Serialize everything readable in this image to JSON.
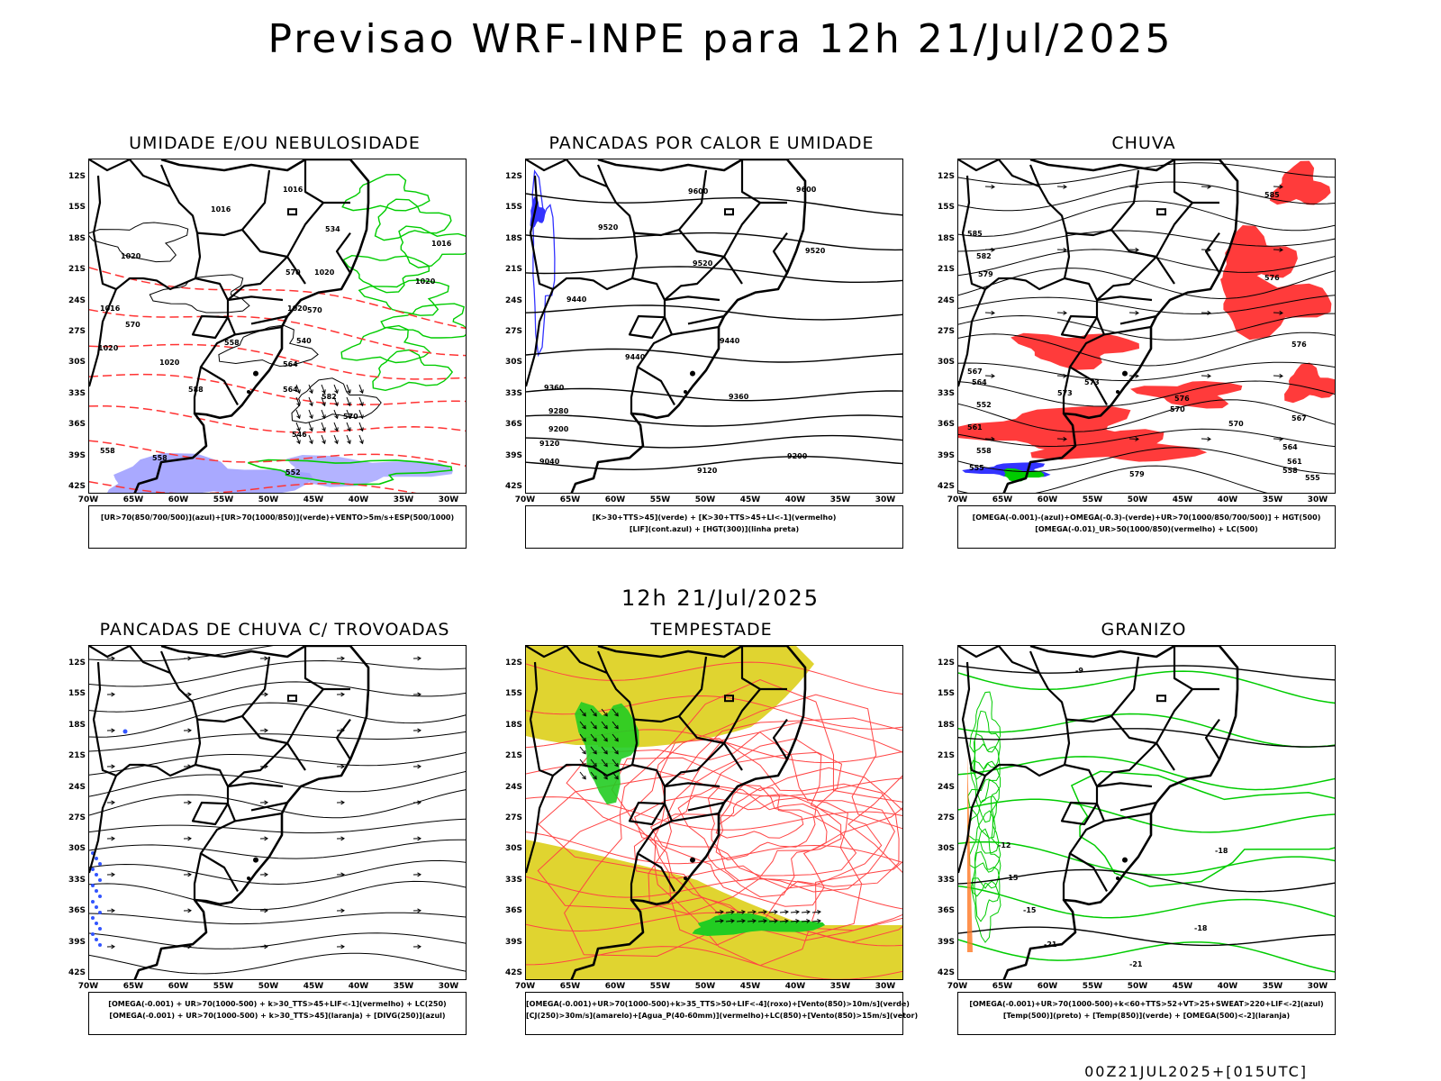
{
  "main_title": "Previsao WRF-INPE  para 12h 21/Jul/2025",
  "mid_title": "12h 21/Jul/2025",
  "footer": "00Z21JUL2025+[015UTC]",
  "lat_labels": [
    "12S",
    "15S",
    "18S",
    "21S",
    "24S",
    "27S",
    "30S",
    "33S",
    "36S",
    "39S",
    "42S"
  ],
  "lon_labels": [
    "70W",
    "65W",
    "60W",
    "55W",
    "50W",
    "45W",
    "40W",
    "35W",
    "30W"
  ],
  "chart_data": [
    {
      "type": "map",
      "title": "UMIDADE E/OU NEBULOSIDADE",
      "legend": [
        "[UR>70(850/700/500)](azul)+[UR>70(1000/850)](verde)+VENTO>5m/s+ESP(500/1000)"
      ],
      "contour_labels": [
        "1016",
        "1016",
        "1020",
        "1020",
        "1020",
        "1016",
        "1020",
        "1016",
        "1020",
        "1020",
        "570",
        "570",
        "564",
        "558",
        "558",
        "552",
        "546",
        "540",
        "534",
        "564",
        "570",
        "582",
        "558",
        "570",
        "588"
      ],
      "colors": {
        "ur_azul": "#9999ff",
        "ur_verde": "#00cc00",
        "esp": "#ff3333"
      }
    },
    {
      "type": "map",
      "title": "PANCADAS POR CALOR E UMIDADE",
      "legend": [
        "[K>30+TTS>45](verde) + [K>30+TTS>45+LI<-1](vermelho)",
        "[LIF](cont.azul) + [HGT(300)](linha preta)"
      ],
      "contour_labels": [
        "9600",
        "9600",
        "9520",
        "9520",
        "9520",
        "9440",
        "9440",
        "9440",
        "9360",
        "9360",
        "9280",
        "9200",
        "9200",
        "9120",
        "9120",
        "9040"
      ],
      "colors": {
        "lif": "#3333ff",
        "hgt": "#000000"
      }
    },
    {
      "type": "map",
      "title": "CHUVA",
      "legend": [
        "[OMEGA(-0.001)-(azul)+OMEGA(-0.3)-(verde)+UR>70(1000/850/700/500)] + HGT(500)",
        "[OMEGA(-0.01)_UR>50(1000/850)(vermelho) + LC(500)"
      ],
      "contour_labels": [
        "585",
        "585",
        "582",
        "579",
        "576",
        "576",
        "573",
        "573",
        "570",
        "567",
        "564",
        "561",
        "558",
        "555",
        "552",
        "579",
        "576",
        "570",
        "567",
        "564",
        "561",
        "558",
        "555"
      ],
      "colors": {
        "chuva": "#ff3333",
        "omega_azul": "#3333ff",
        "omega_verde": "#00cc00"
      }
    },
    {
      "type": "map",
      "title": "PANCADAS DE CHUVA C/ TROVOADAS",
      "legend": [
        "[OMEGA(-0.001) + UR>70(1000-500) + k>30_TTS>45+LIF<-1](vermelho) + LC(250)",
        "[OMEGA(-0.001) + UR>70(1000-500) + k>30_TTS>45](laranja) + [DIVG(250)](azul)"
      ],
      "contour_labels": [],
      "colors": {
        "divg": "#3333ff"
      }
    },
    {
      "type": "map",
      "title": "TEMPESTADE",
      "legend": [
        "[OMEGA(-0.001)+UR>70(1000-500)+k>35_TTS>50+LIF<-4](roxo)+[Vento(850)>10m/s](verde)",
        "[CJ(250)>30m/s](amarelo)+[Agua_P(40-60mm)](vermelho)+LC(850)+[Vento(850)>15m/s](vetor)"
      ],
      "contour_labels": [],
      "colors": {
        "cj": "#e0d430",
        "lc": "#ff4444",
        "vento": "#00cc00"
      }
    },
    {
      "type": "map",
      "title": "GRANIZO",
      "legend": [
        "[OMEGA(-0.001)+UR>70(1000-500)+k<60+TTS>52+VT>25+SWEAT>220+LIF<-2](azul)",
        "[Temp(500)](preto) + [Temp(850)](verde) + [OMEGA(500)<-2](laranja)"
      ],
      "contour_labels": [
        "-9",
        "-12",
        "-15",
        "-18",
        "-15",
        "-18",
        "-21",
        "-21"
      ],
      "colors": {
        "temp850": "#00cc00",
        "temp500": "#000000",
        "omega": "#ff7722"
      }
    }
  ]
}
